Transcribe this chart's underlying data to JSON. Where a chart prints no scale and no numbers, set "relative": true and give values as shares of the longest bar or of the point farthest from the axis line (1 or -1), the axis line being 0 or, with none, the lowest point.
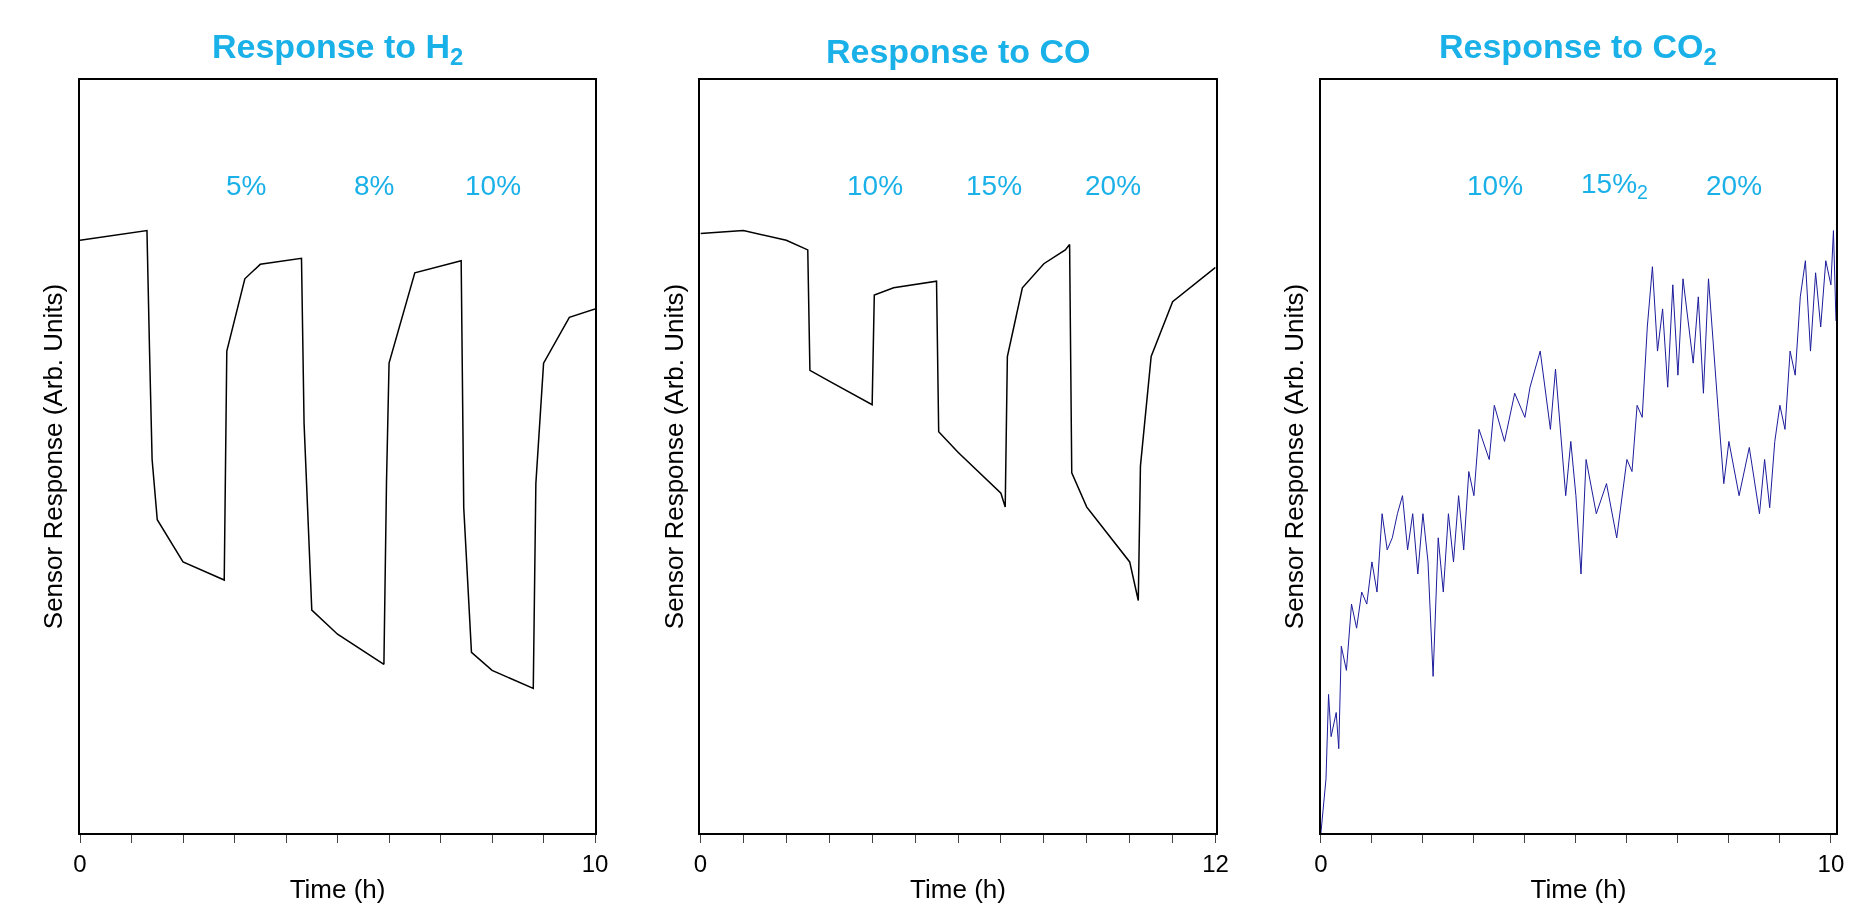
{
  "chart_data": [
    {
      "type": "line",
      "title": "Response to H$_{2}$",
      "xlabel": "Time (h)",
      "ylabel": "Sensor Response (Arb. Units)",
      "relative": true,
      "xlim": [
        0,
        10
      ],
      "xticks": [
        0,
        {
          "value": 1,
          "label": null
        },
        {
          "value": 2,
          "label": null
        },
        {
          "value": 3,
          "label": null
        },
        {
          "value": 4,
          "label": null
        },
        {
          "value": 5,
          "label": null
        },
        {
          "value": 6,
          "label": null
        },
        {
          "value": 7,
          "label": null
        },
        {
          "value": 8,
          "label": null
        },
        {
          "value": 9,
          "label": null
        },
        10
      ],
      "x": [
        0,
        1.3,
        1.35,
        1.4,
        1.5,
        2,
        2.8,
        2.85,
        3.2,
        3.5,
        4.3,
        4.35,
        4.5,
        5,
        5.9,
        5.95,
        6.0,
        6.5,
        7.4,
        7.45,
        7.6,
        8,
        8.8,
        8.85,
        9,
        9.5,
        10
      ],
      "series": [
        {
          "color": "#000000",
          "values": [
            0.984,
            1.0,
            0.8,
            0.62,
            0.52,
            0.45,
            0.42,
            0.8,
            0.92,
            0.944,
            0.954,
            0.68,
            0.37,
            0.33,
            0.28,
            0.58,
            0.78,
            0.93,
            0.95,
            0.54,
            0.3,
            0.27,
            0.24,
            0.58,
            0.78,
            0.856,
            0.87
          ]
        }
      ],
      "annotations": [
        "5%",
        "8%",
        "10%"
      ]
    },
    {
      "type": "line",
      "title": "Response to CO",
      "xlabel": "Time (h)",
      "ylabel": "Sensor Response (Arb. Units)",
      "relative": true,
      "xlim": [
        0,
        12
      ],
      "xticks": [
        0,
        {
          "value": 1,
          "label": null
        },
        {
          "value": 2,
          "label": null
        },
        {
          "value": 3,
          "label": null
        },
        {
          "value": 4,
          "label": null
        },
        {
          "value": 5,
          "label": null
        },
        {
          "value": 6,
          "label": null
        },
        {
          "value": 7,
          "label": null
        },
        {
          "value": 8,
          "label": null
        },
        {
          "value": 9,
          "label": null
        },
        {
          "value": 10,
          "label": null
        },
        {
          "value": 11,
          "label": null
        },
        12
      ],
      "x": [
        0,
        1,
        2,
        2.5,
        2.55,
        3,
        4,
        4.05,
        4.5,
        5.5,
        5.55,
        6,
        7,
        7.1,
        7.15,
        7.5,
        8,
        8.5,
        8.6,
        8.65,
        9,
        10,
        10.2,
        10.25,
        10.5,
        11,
        12
      ],
      "series": [
        {
          "color": "#000000",
          "values": [
            0.995,
            1.0,
            0.984,
            0.968,
            0.768,
            0.75,
            0.711,
            0.893,
            0.905,
            0.916,
            0.666,
            0.632,
            0.564,
            0.541,
            0.791,
            0.905,
            0.945,
            0.968,
            0.977,
            0.598,
            0.541,
            0.45,
            0.386,
            0.609,
            0.791,
            0.882,
            0.939
          ]
        }
      ],
      "annotations": [
        "10%",
        "15%",
        "20%"
      ]
    },
    {
      "type": "line",
      "title": "Response to CO$_{2}$",
      "xlabel": "Time (h)",
      "ylabel": "Sensor Response (Arb. Units)",
      "relative": true,
      "xlim": [
        0,
        10.1
      ],
      "xticks": [
        0,
        {
          "value": 1,
          "label": null
        },
        {
          "value": 2,
          "label": null
        },
        {
          "value": 3,
          "label": null
        },
        {
          "value": 4,
          "label": null
        },
        {
          "value": 5,
          "label": null
        },
        {
          "value": 6,
          "label": null
        },
        {
          "value": 7,
          "label": null
        },
        {
          "value": 8,
          "label": null
        },
        {
          "value": 9,
          "label": null
        },
        10
      ],
      "x": [
        0,
        0.1,
        0.15,
        0.2,
        0.3,
        0.35,
        0.4,
        0.5,
        0.6,
        0.7,
        0.8,
        0.9,
        1.0,
        1.1,
        1.2,
        1.3,
        1.4,
        1.5,
        1.6,
        1.7,
        1.8,
        1.9,
        2.0,
        2.1,
        2.2,
        2.3,
        2.4,
        2.5,
        2.6,
        2.7,
        2.8,
        2.9,
        3.0,
        3.1,
        3.3,
        3.4,
        3.6,
        3.8,
        4.0,
        4.1,
        4.3,
        4.5,
        4.6,
        4.8,
        4.9,
        5.0,
        5.1,
        5.2,
        5.4,
        5.6,
        5.8,
        6.0,
        6.1,
        6.2,
        6.3,
        6.4,
        6.5,
        6.6,
        6.7,
        6.8,
        6.9,
        7.0,
        7.1,
        7.3,
        7.4,
        7.5,
        7.6,
        7.8,
        7.9,
        8.0,
        8.2,
        8.4,
        8.6,
        8.7,
        8.8,
        8.9,
        9.0,
        9.1,
        9.2,
        9.3,
        9.4,
        9.5,
        9.6,
        9.7,
        9.8,
        9.9,
        10.0,
        10.05,
        10.1
      ],
      "series": [
        {
          "color": "#1c1c9c",
          "values": [
            0,
            0.09,
            0.23,
            0.16,
            0.2,
            0.14,
            0.31,
            0.27,
            0.38,
            0.34,
            0.4,
            0.38,
            0.45,
            0.4,
            0.53,
            0.47,
            0.49,
            0.53,
            0.56,
            0.47,
            0.53,
            0.43,
            0.53,
            0.45,
            0.26,
            0.49,
            0.4,
            0.53,
            0.45,
            0.56,
            0.47,
            0.6,
            0.56,
            0.67,
            0.62,
            0.71,
            0.65,
            0.73,
            0.69,
            0.74,
            0.8,
            0.67,
            0.77,
            0.56,
            0.65,
            0.56,
            0.43,
            0.62,
            0.53,
            0.58,
            0.49,
            0.62,
            0.6,
            0.71,
            0.69,
            0.84,
            0.94,
            0.8,
            0.87,
            0.74,
            0.91,
            0.76,
            0.92,
            0.78,
            0.89,
            0.73,
            0.92,
            0.69,
            0.58,
            0.65,
            0.56,
            0.64,
            0.53,
            0.62,
            0.54,
            0.65,
            0.71,
            0.67,
            0.8,
            0.76,
            0.89,
            0.95,
            0.8,
            0.93,
            0.84,
            0.95,
            0.91,
            1,
            0.85
          ]
        }
      ],
      "annotations": [
        "10%",
        "15%$_{2}$",
        "20%"
      ]
    }
  ]
}
